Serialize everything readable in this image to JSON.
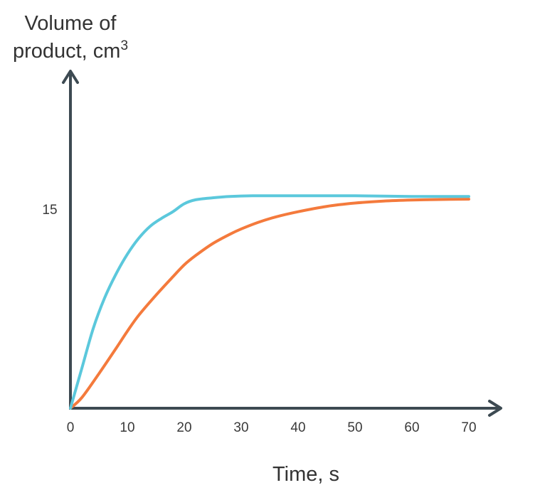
{
  "chart_data": {
    "type": "line",
    "title": "",
    "ylabel_line1": "Volume of",
    "ylabel_line2": "product, cm",
    "ylabel_superscript": "3",
    "xlabel": "Time, s",
    "x_ticks": [
      0,
      10,
      20,
      30,
      40,
      50,
      60,
      70
    ],
    "y_ticks": [
      15
    ],
    "xlim": [
      0,
      75
    ],
    "ylim": [
      0,
      25
    ],
    "grid": false,
    "legend": "none",
    "axis_color": "#3d4a52",
    "series": [
      {
        "color": "#5bc8dc",
        "x": [
          0,
          2,
          4,
          6,
          8,
          10,
          12,
          14,
          16,
          18,
          20,
          22,
          25,
          28,
          32,
          40,
          50,
          60,
          70
        ],
        "y": [
          0,
          3.0,
          6.0,
          8.3,
          10.1,
          11.6,
          12.8,
          13.7,
          14.3,
          14.8,
          15.4,
          15.7,
          15.85,
          15.95,
          16.0,
          16.0,
          16.0,
          15.95,
          15.95
        ]
      },
      {
        "color": "#f47a3c",
        "x": [
          0,
          2,
          5,
          8,
          10,
          12,
          15,
          18,
          20,
          22,
          25,
          28,
          30,
          33,
          36,
          40,
          45,
          50,
          55,
          60,
          65,
          70
        ],
        "y": [
          0,
          0.8,
          2.6,
          4.5,
          5.8,
          7.0,
          8.5,
          9.9,
          10.8,
          11.5,
          12.4,
          13.1,
          13.5,
          14.0,
          14.4,
          14.8,
          15.2,
          15.45,
          15.6,
          15.68,
          15.72,
          15.75
        ]
      }
    ]
  }
}
